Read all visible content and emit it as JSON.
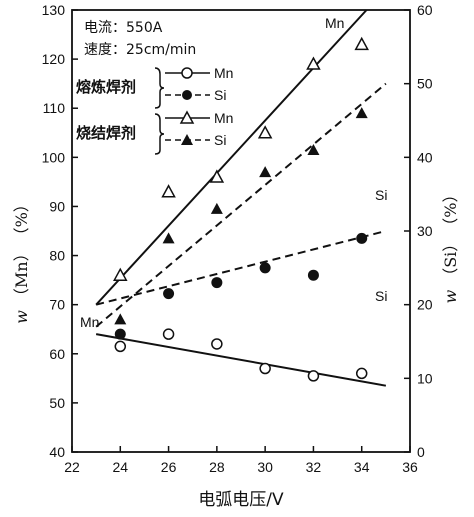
{
  "chart_data": {
    "type": "scatter",
    "annotations": {
      "current": "电流：550A",
      "speed": "速度：25cm/min"
    },
    "xlabel": "电弧电压/V",
    "ylabel_left": {
      "var": "w",
      "sym": "（Mn）",
      "unit": "（%）"
    },
    "ylabel_right": {
      "var": "w",
      "sym": "（Si）",
      "unit": "（%）"
    },
    "xlim": [
      22,
      36
    ],
    "ylim_left": [
      40,
      130
    ],
    "ylim_right": [
      0,
      60
    ],
    "x_ticks": [
      22,
      24,
      26,
      28,
      30,
      32,
      34,
      36
    ],
    "y_left_ticks": [
      40,
      50,
      60,
      70,
      80,
      90,
      100,
      110,
      120,
      130
    ],
    "y_right_ticks": [
      0,
      10,
      20,
      30,
      40,
      50,
      60
    ],
    "legend": {
      "groups": [
        {
          "label": "熔炼焊剂",
          "items": [
            {
              "marker": "open-circle",
              "line": "solid",
              "text": "Mn"
            },
            {
              "marker": "filled-circle",
              "line": "dashed",
              "text": "Si"
            }
          ]
        },
        {
          "label": "烧结焊剂",
          "items": [
            {
              "marker": "open-triangle",
              "line": "solid",
              "text": "Mn"
            },
            {
              "marker": "filled-triangle",
              "line": "dashed",
              "text": "Si"
            }
          ]
        }
      ]
    },
    "series": [
      {
        "name": "熔炼焊剂 Mn",
        "axis": "left",
        "marker": "open-circle",
        "x": [
          24,
          26,
          28,
          30,
          32,
          34
        ],
        "y": [
          61.5,
          64,
          62,
          57,
          55.5,
          56
        ]
      },
      {
        "name": "熔炼焊剂 Si",
        "axis": "right",
        "marker": "filled-circle",
        "x": [
          24,
          26,
          28,
          30,
          32,
          34
        ],
        "y": [
          16,
          21.5,
          23,
          25,
          24,
          29
        ]
      },
      {
        "name": "烧结焊剂 Mn",
        "axis": "left",
        "marker": "open-triangle",
        "x": [
          24,
          26,
          28,
          30,
          32,
          34
        ],
        "y": [
          76,
          93,
          96,
          105,
          119,
          123
        ]
      },
      {
        "name": "烧结焊剂 Si",
        "axis": "right",
        "marker": "filled-triangle",
        "x": [
          24,
          26,
          28,
          30,
          32,
          34
        ],
        "y": [
          18,
          29,
          33,
          38,
          41,
          46
        ]
      }
    ],
    "fit_lines": [
      {
        "name": "烧结焊剂 Mn",
        "label": "Mn",
        "axis": "left",
        "style": "solid",
        "points": [
          [
            23,
            70
          ],
          [
            34.2,
            130
          ]
        ]
      },
      {
        "name": "熔炼焊剂 Mn",
        "label": "Mn",
        "axis": "left",
        "style": "solid",
        "points": [
          [
            23,
            64
          ],
          [
            35,
            53.5
          ]
        ]
      },
      {
        "name": "烧结焊剂 Si",
        "label": "Si",
        "axis": "right",
        "style": "dashed",
        "points": [
          [
            23,
            17
          ],
          [
            35,
            50
          ]
        ]
      },
      {
        "name": "熔炼焊剂 Si",
        "label": "Si",
        "axis": "right",
        "style": "dashed",
        "points": [
          [
            23,
            20
          ],
          [
            35,
            30
          ]
        ]
      }
    ]
  }
}
